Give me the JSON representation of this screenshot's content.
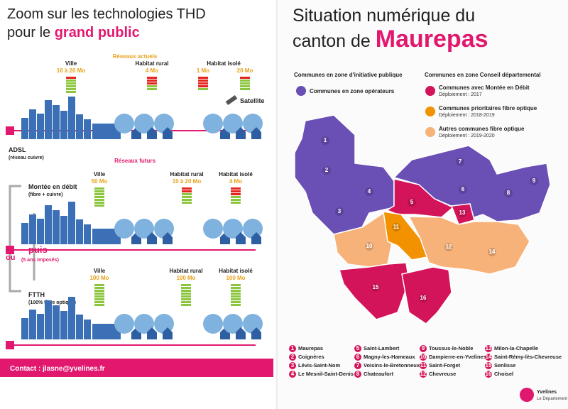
{
  "left": {
    "title_line1": "Zoom sur les technologies THD",
    "title_line2": "pour le",
    "title_highlight": "grand public",
    "current": {
      "heading": "Réseaux actuels",
      "ville": "Ville",
      "ville_speed": "16 à 20 Mo",
      "rural": "Habitat rural",
      "rural_speed": "4 Mo",
      "isole": "Habitat isolé",
      "isole_speed": "1 Mo",
      "satellite_speed": "20 Mo",
      "satellite": "Satellite",
      "tech": "ADSL",
      "tech_note": "(réseau cuivre)"
    },
    "future": {
      "heading": "Réseaux futurs",
      "step1": {
        "name": "Montée en débit",
        "note": "(fibre + cuivre)",
        "ville": "Ville",
        "ville_speed": "50 Mo",
        "rural": "Habitat rural",
        "rural_speed": "10 à 20 Mo",
        "isole": "Habitat isolé",
        "isole_speed": "4 Mo"
      },
      "or": "ou",
      "then": "puis",
      "then_note": "(5 ans imposés)",
      "step2": {
        "name": "FTTH",
        "note": "(100% fibre optique)",
        "ville": "Ville",
        "ville_speed": "100 Mo",
        "rural": "Habitat rural",
        "rural_speed": "100 Mo",
        "isole": "Habitat isolé",
        "isole_speed": "100 Mo"
      }
    },
    "contact": "Contact : jlasne@yvelines.fr"
  },
  "right": {
    "title_line1": "Situation numérique du",
    "title_line2": "canton de",
    "title_highlight": "Maurepas",
    "legend": {
      "group1": "Communes en zone d'initiative publique",
      "item1": "Communes en zone opérateurs",
      "group2": "Communes en zone Conseil départemental",
      "items": [
        {
          "label": "Communes avec Montée en Débit",
          "note": "Déploiement : 2017"
        },
        {
          "label": "Communes prioritaires fibre optique",
          "note": "Déploiement : 2018-2019"
        },
        {
          "label": "Autres communes fibre optique",
          "note": "Déploiement : 2019-2020"
        }
      ]
    },
    "communes": [
      {
        "number": "1",
        "name": "Maurepas"
      },
      {
        "number": "2",
        "name": "Coignères"
      },
      {
        "number": "3",
        "name": "Lévis-Saint-Nom"
      },
      {
        "number": "4",
        "name": "Le Mesnil-Saint-Denis"
      },
      {
        "number": "5",
        "name": "Saint-Lambert"
      },
      {
        "number": "6",
        "name": "Magny-les-Hameaux"
      },
      {
        "number": "7",
        "name": "Voisins-le-Bretonneux"
      },
      {
        "number": "8",
        "name": "Chateaufort"
      },
      {
        "number": "9",
        "name": "Toussus-le-Noble"
      },
      {
        "number": "10",
        "name": "Dampierre-en-Yvelines"
      },
      {
        "number": "11",
        "name": "Saint-Forget"
      },
      {
        "number": "12",
        "name": "Chevreuse"
      },
      {
        "number": "13",
        "name": "Milon-la-Chapelle"
      },
      {
        "number": "14",
        "name": "Saint-Rémy-lès-Chevreuse"
      },
      {
        "number": "15",
        "name": "Senlisse"
      },
      {
        "number": "16",
        "name": "Choisel"
      }
    ],
    "logo": "Yvelines",
    "logo_sub": "Le Département"
  }
}
